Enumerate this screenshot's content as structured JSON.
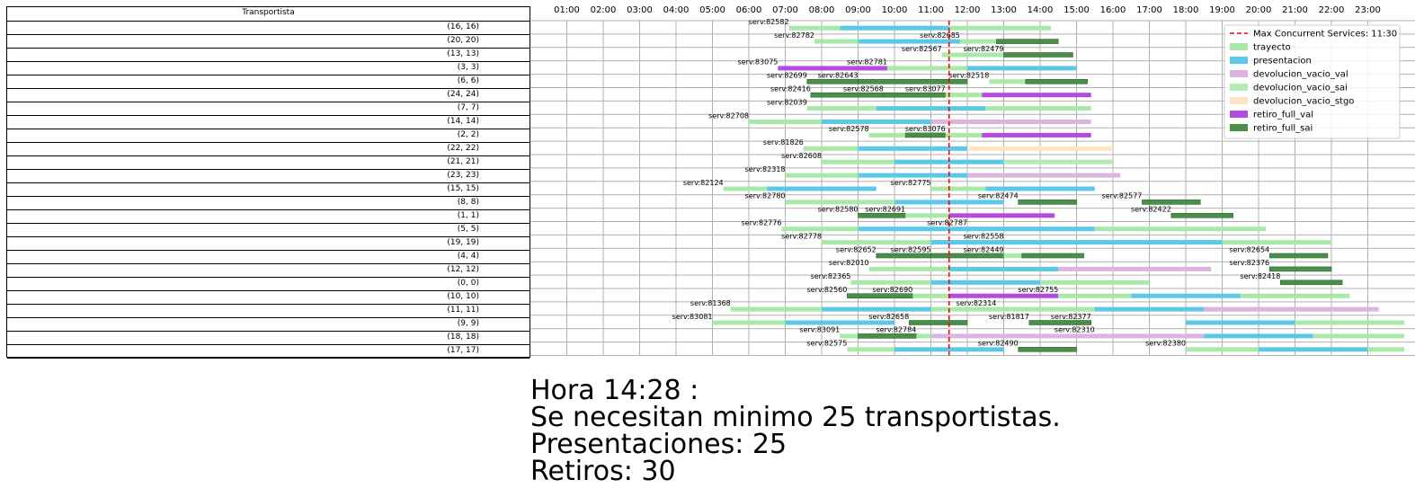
{
  "table": {
    "header": "Transportista",
    "rows": [
      "(16, 16)",
      "(20, 20)",
      "(13, 13)",
      "(3, 3)",
      "(6, 6)",
      "(24, 24)",
      "(7, 7)",
      "(14, 14)",
      "(2, 2)",
      "(22, 22)",
      "(21, 21)",
      "(23, 23)",
      "(15, 15)",
      "(8, 8)",
      "(1, 1)",
      "(5, 5)",
      "(19, 19)",
      "(4, 4)",
      "(12, 12)",
      "(0, 0)",
      "(10, 10)",
      "(11, 11)",
      "(9, 9)",
      "(18, 18)",
      "(17, 17)"
    ]
  },
  "chart_data": {
    "type": "bar",
    "subtype": "gantt",
    "x_unit": "hours",
    "xlim": [
      0,
      24
    ],
    "xticks": [
      "01:00",
      "02:00",
      "03:00",
      "04:00",
      "05:00",
      "06:00",
      "07:00",
      "08:00",
      "09:00",
      "10:00",
      "11:00",
      "12:00",
      "13:00",
      "14:00",
      "15:00",
      "16:00",
      "17:00",
      "18:00",
      "19:00",
      "20:00",
      "21:00",
      "22:00",
      "23:00"
    ],
    "grid": true,
    "colors": {
      "trayecto": "#a8e8a8",
      "presentacion": "#5bc8ea",
      "devolucion_vacio_val": "#dcb4e0",
      "devolucion_vacio_sai": "#b4eab4",
      "devolucion_vacio_stgo": "#ffe4c4",
      "retiro_full_val": "#b44ae0",
      "retiro_full_sai": "#4a8e4a",
      "max_line": "#ff0000"
    },
    "legend": {
      "placement": "top-right",
      "max_line_label": "Max Concurrent Services: 11:30",
      "entries": [
        "trayecto",
        "presentacion",
        "devolucion_vacio_val",
        "devolucion_vacio_sai",
        "devolucion_vacio_stgo",
        "retiro_full_val",
        "retiro_full_sai"
      ]
    },
    "max_concurrent_x": 11.5,
    "rows": [
      {
        "segs": [
          [
            7.1,
            8.5,
            "trayecto"
          ],
          [
            8.5,
            11.5,
            "presentacion"
          ],
          [
            11.5,
            14.3,
            "trayecto"
          ]
        ],
        "labels": [
          [
            7.1,
            "serv:82582"
          ]
        ]
      },
      {
        "segs": [
          [
            7.8,
            9.0,
            "trayecto"
          ],
          [
            9.0,
            11.8,
            "presentacion"
          ],
          [
            11.8,
            12.8,
            "trayecto"
          ],
          [
            12.8,
            14.5,
            "retiro_full_sai"
          ]
        ],
        "labels": [
          [
            7.8,
            "serv:82782"
          ],
          [
            11.8,
            "serv:82685"
          ]
        ]
      },
      {
        "segs": [
          [
            11.3,
            11.9,
            "trayecto"
          ],
          [
            11.9,
            13.0,
            "trayecto"
          ],
          [
            13.0,
            14.9,
            "retiro_full_sai"
          ]
        ],
        "labels": [
          [
            11.3,
            "serv:82567"
          ],
          [
            13.0,
            "serv:82479"
          ]
        ]
      },
      {
        "segs": [
          [
            6.8,
            9.8,
            "retiro_full_val"
          ],
          [
            9.8,
            12.0,
            "trayecto"
          ],
          [
            12.0,
            15.0,
            "presentacion"
          ]
        ],
        "labels": [
          [
            6.8,
            "serv:83075"
          ],
          [
            9.8,
            "serv:82781"
          ]
        ]
      },
      {
        "segs": [
          [
            7.6,
            9.0,
            "retiro_full_sai"
          ],
          [
            9.0,
            12.0,
            "retiro_full_sai"
          ],
          [
            12.6,
            13.6,
            "trayecto"
          ],
          [
            13.6,
            15.3,
            "retiro_full_sai"
          ]
        ],
        "labels": [
          [
            7.6,
            "serv:82699"
          ],
          [
            9.0,
            "serv:82643"
          ],
          [
            12.6,
            "serv:82518"
          ]
        ]
      },
      {
        "segs": [
          [
            7.7,
            9.7,
            "retiro_full_sai"
          ],
          [
            9.7,
            11.4,
            "retiro_full_sai"
          ],
          [
            11.4,
            12.4,
            "trayecto"
          ],
          [
            12.4,
            15.4,
            "retiro_full_val"
          ]
        ],
        "labels": [
          [
            7.7,
            "serv:82416"
          ],
          [
            9.7,
            "serv:82568"
          ],
          [
            11.4,
            "serv:83077"
          ]
        ]
      },
      {
        "segs": [
          [
            7.6,
            9.5,
            "trayecto"
          ],
          [
            9.5,
            12.5,
            "presentacion"
          ],
          [
            12.5,
            15.4,
            "trayecto"
          ]
        ],
        "labels": [
          [
            7.6,
            "serv:82039"
          ]
        ]
      },
      {
        "segs": [
          [
            6.0,
            8.0,
            "trayecto"
          ],
          [
            8.0,
            11.0,
            "presentacion"
          ],
          [
            11.0,
            15.4,
            "devolucion_vacio_val"
          ]
        ],
        "labels": [
          [
            6.0,
            "serv:82708"
          ]
        ]
      },
      {
        "segs": [
          [
            9.3,
            10.3,
            "trayecto"
          ],
          [
            10.3,
            11.4,
            "retiro_full_sai"
          ],
          [
            11.4,
            12.4,
            "trayecto"
          ],
          [
            12.4,
            15.4,
            "retiro_full_val"
          ]
        ],
        "labels": [
          [
            9.3,
            "serv:82578"
          ],
          [
            11.4,
            "serv:83076"
          ]
        ]
      },
      {
        "segs": [
          [
            7.5,
            9.0,
            "trayecto"
          ],
          [
            9.0,
            12.0,
            "presentacion"
          ],
          [
            12.0,
            16.0,
            "devolucion_vacio_stgo"
          ]
        ],
        "labels": [
          [
            7.5,
            "serv:81826"
          ]
        ]
      },
      {
        "segs": [
          [
            8.0,
            10.0,
            "trayecto"
          ],
          [
            10.0,
            13.0,
            "presentacion"
          ],
          [
            13.0,
            16.0,
            "devolucion_vacio_sai"
          ]
        ],
        "labels": [
          [
            8.0,
            "serv:82608"
          ]
        ]
      },
      {
        "segs": [
          [
            7.0,
            9.0,
            "trayecto"
          ],
          [
            9.0,
            12.0,
            "presentacion"
          ],
          [
            12.0,
            16.2,
            "devolucion_vacio_val"
          ]
        ],
        "labels": [
          [
            7.0,
            "serv:82318"
          ]
        ]
      },
      {
        "segs": [
          [
            5.3,
            6.5,
            "trayecto"
          ],
          [
            6.5,
            9.5,
            "presentacion"
          ],
          [
            11.0,
            12.5,
            "trayecto"
          ],
          [
            12.5,
            15.5,
            "presentacion"
          ]
        ],
        "labels": [
          [
            5.3,
            "serv:82124"
          ],
          [
            11.0,
            "serv:82775"
          ]
        ]
      },
      {
        "segs": [
          [
            7.0,
            10.0,
            "trayecto"
          ],
          [
            10.0,
            13.0,
            "presentacion"
          ],
          [
            13.4,
            15.0,
            "retiro_full_sai"
          ],
          [
            16.8,
            18.4,
            "retiro_full_sai"
          ]
        ],
        "labels": [
          [
            7.0,
            "serv:82780"
          ],
          [
            13.4,
            "serv:82474"
          ],
          [
            16.8,
            "serv:82577"
          ]
        ]
      },
      {
        "segs": [
          [
            9.0,
            10.3,
            "retiro_full_sai"
          ],
          [
            10.3,
            11.5,
            "trayecto"
          ],
          [
            11.5,
            14.4,
            "retiro_full_val"
          ],
          [
            17.6,
            19.3,
            "retiro_full_sai"
          ]
        ],
        "labels": [
          [
            9.0,
            "serv:82580"
          ],
          [
            10.3,
            "serv:82691"
          ],
          [
            17.6,
            "serv:82422"
          ]
        ]
      },
      {
        "segs": [
          [
            6.9,
            9.0,
            "trayecto"
          ],
          [
            9.0,
            12.0,
            "presentacion"
          ],
          [
            12.0,
            15.5,
            "presentacion"
          ],
          [
            15.5,
            20.2,
            "trayecto"
          ]
        ],
        "labels": [
          [
            6.9,
            "serv:82776"
          ],
          [
            12.0,
            "serv:82787"
          ]
        ]
      },
      {
        "segs": [
          [
            8.0,
            11.0,
            "trayecto"
          ],
          [
            11.0,
            16.0,
            "presentacion"
          ],
          [
            16.0,
            19.0,
            "presentacion"
          ],
          [
            19.0,
            22.0,
            "trayecto"
          ]
        ],
        "labels": [
          [
            8.0,
            "serv:82778"
          ],
          [
            13.0,
            "serv:82558"
          ]
        ]
      },
      {
        "segs": [
          [
            9.5,
            11.0,
            "retiro_full_sai"
          ],
          [
            11.0,
            13.0,
            "retiro_full_sai"
          ],
          [
            13.0,
            13.5,
            "trayecto"
          ],
          [
            13.5,
            15.2,
            "retiro_full_sai"
          ],
          [
            20.3,
            21.9,
            "retiro_full_sai"
          ]
        ],
        "labels": [
          [
            9.5,
            "serv:82652"
          ],
          [
            11.0,
            "serv:82595"
          ],
          [
            13.0,
            "serv:82449"
          ],
          [
            20.3,
            "serv:82654"
          ]
        ]
      },
      {
        "segs": [
          [
            9.3,
            11.5,
            "trayecto"
          ],
          [
            11.5,
            14.5,
            "presentacion"
          ],
          [
            14.5,
            18.7,
            "devolucion_vacio_val"
          ],
          [
            20.3,
            22.0,
            "retiro_full_sai"
          ]
        ],
        "labels": [
          [
            9.3,
            "serv:82010"
          ],
          [
            20.3,
            "serv:82376"
          ]
        ]
      },
      {
        "segs": [
          [
            8.8,
            11.0,
            "trayecto"
          ],
          [
            11.0,
            14.0,
            "presentacion"
          ],
          [
            14.0,
            17.0,
            "trayecto"
          ],
          [
            20.6,
            22.3,
            "retiro_full_sai"
          ]
        ],
        "labels": [
          [
            8.8,
            "serv:82365"
          ],
          [
            20.6,
            "serv:82418"
          ]
        ]
      },
      {
        "segs": [
          [
            8.7,
            10.5,
            "retiro_full_sai"
          ],
          [
            10.5,
            11.5,
            "trayecto"
          ],
          [
            11.5,
            14.5,
            "retiro_full_val"
          ],
          [
            14.5,
            16.5,
            "trayecto"
          ],
          [
            16.5,
            19.5,
            "presentacion"
          ],
          [
            19.5,
            22.5,
            "trayecto"
          ]
        ],
        "labels": [
          [
            8.7,
            "serv:82560"
          ],
          [
            10.5,
            "serv:82690"
          ],
          [
            14.5,
            "serv:82755"
          ]
        ]
      },
      {
        "segs": [
          [
            5.5,
            8.0,
            "trayecto"
          ],
          [
            8.0,
            11.0,
            "presentacion"
          ],
          [
            11.0,
            12.8,
            "trayecto"
          ],
          [
            12.8,
            15.5,
            "trayecto"
          ],
          [
            15.5,
            18.5,
            "presentacion"
          ],
          [
            18.5,
            23.3,
            "devolucion_vacio_val"
          ]
        ],
        "labels": [
          [
            5.5,
            "serv:81368"
          ],
          [
            12.8,
            "serv:82314"
          ]
        ]
      },
      {
        "segs": [
          [
            5.0,
            7.0,
            "trayecto"
          ],
          [
            7.0,
            10.0,
            "presentacion"
          ],
          [
            10.4,
            12.0,
            "retiro_full_sai"
          ],
          [
            13.7,
            15.4,
            "retiro_full_sai"
          ],
          [
            18.0,
            21.0,
            "presentacion"
          ],
          [
            21.0,
            24.0,
            "trayecto"
          ]
        ],
        "labels": [
          [
            5.0,
            "serv:83081"
          ],
          [
            10.4,
            "serv:82658"
          ],
          [
            13.7,
            "serv:81817"
          ],
          [
            15.4,
            "serv:82377"
          ]
        ]
      },
      {
        "segs": [
          [
            8.5,
            9.0,
            "trayecto"
          ],
          [
            9.0,
            10.6,
            "retiro_full_sai"
          ],
          [
            10.6,
            11.0,
            "trayecto"
          ],
          [
            11.0,
            18.5,
            "devolucion_vacio_val"
          ],
          [
            18.5,
            21.5,
            "presentacion"
          ],
          [
            21.5,
            24.0,
            "trayecto"
          ]
        ],
        "labels": [
          [
            8.5,
            "serv:83091"
          ],
          [
            10.6,
            "serv:82784"
          ],
          [
            15.5,
            "serv:82310"
          ]
        ]
      },
      {
        "segs": [
          [
            8.7,
            10.0,
            "trayecto"
          ],
          [
            10.0,
            13.0,
            "presentacion"
          ],
          [
            13.4,
            15.0,
            "retiro_full_sai"
          ],
          [
            18.0,
            20.0,
            "trayecto"
          ],
          [
            20.0,
            23.0,
            "presentacion"
          ],
          [
            23.0,
            24.0,
            "trayecto"
          ]
        ],
        "labels": [
          [
            8.7,
            "serv:82575"
          ],
          [
            13.4,
            "serv:82490"
          ],
          [
            18.0,
            "serv:82380"
          ]
        ]
      }
    ]
  },
  "summary": {
    "line1": "Hora 14:28 :",
    "line2": "Se necesitan minimo 25 transportistas.",
    "line3": "Presentaciones: 25",
    "line4": "Retiros: 30"
  }
}
